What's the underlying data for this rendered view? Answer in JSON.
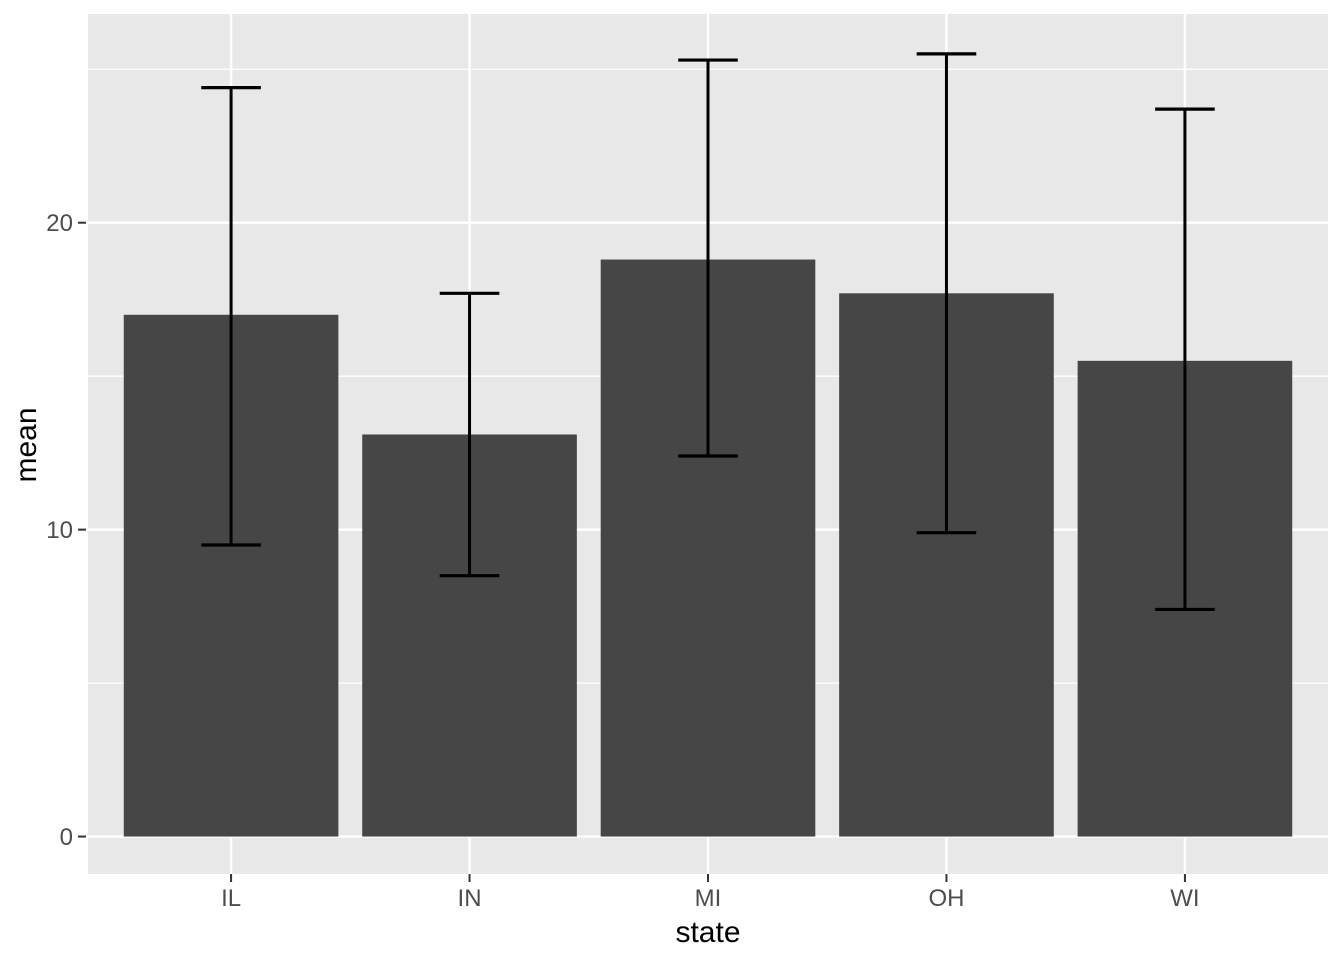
{
  "chart_data": {
    "type": "bar",
    "title": "",
    "xlabel": "state",
    "ylabel": "mean",
    "categories": [
      "IL",
      "IN",
      "MI",
      "OH",
      "WI"
    ],
    "series": [
      {
        "name": "mean",
        "values": [
          17.0,
          13.1,
          18.8,
          17.7,
          15.5
        ]
      }
    ],
    "error_bars": {
      "ymin": [
        9.5,
        8.5,
        12.4,
        9.9,
        7.4
      ],
      "ymax": [
        24.4,
        17.7,
        25.3,
        25.5,
        23.7
      ]
    },
    "y_ticks": [
      0,
      10,
      20
    ],
    "y_minor_ticks": [
      5,
      15,
      25
    ],
    "ylim": [
      -1.22,
      26.8
    ],
    "bar_width": 0.9,
    "errorbar_cap_width": 0.25,
    "grid": true,
    "legend": "none",
    "style": {
      "bar_fill": "#464646",
      "panel_background": "#E8E8E8",
      "grid_color": "#FFFFFF",
      "errorbar_color": "#000000",
      "axis_text_color": "#4D4D4D",
      "axis_title_color": "#000000",
      "tick_color": "#333333",
      "figure_background": "#FFFFFF"
    }
  }
}
